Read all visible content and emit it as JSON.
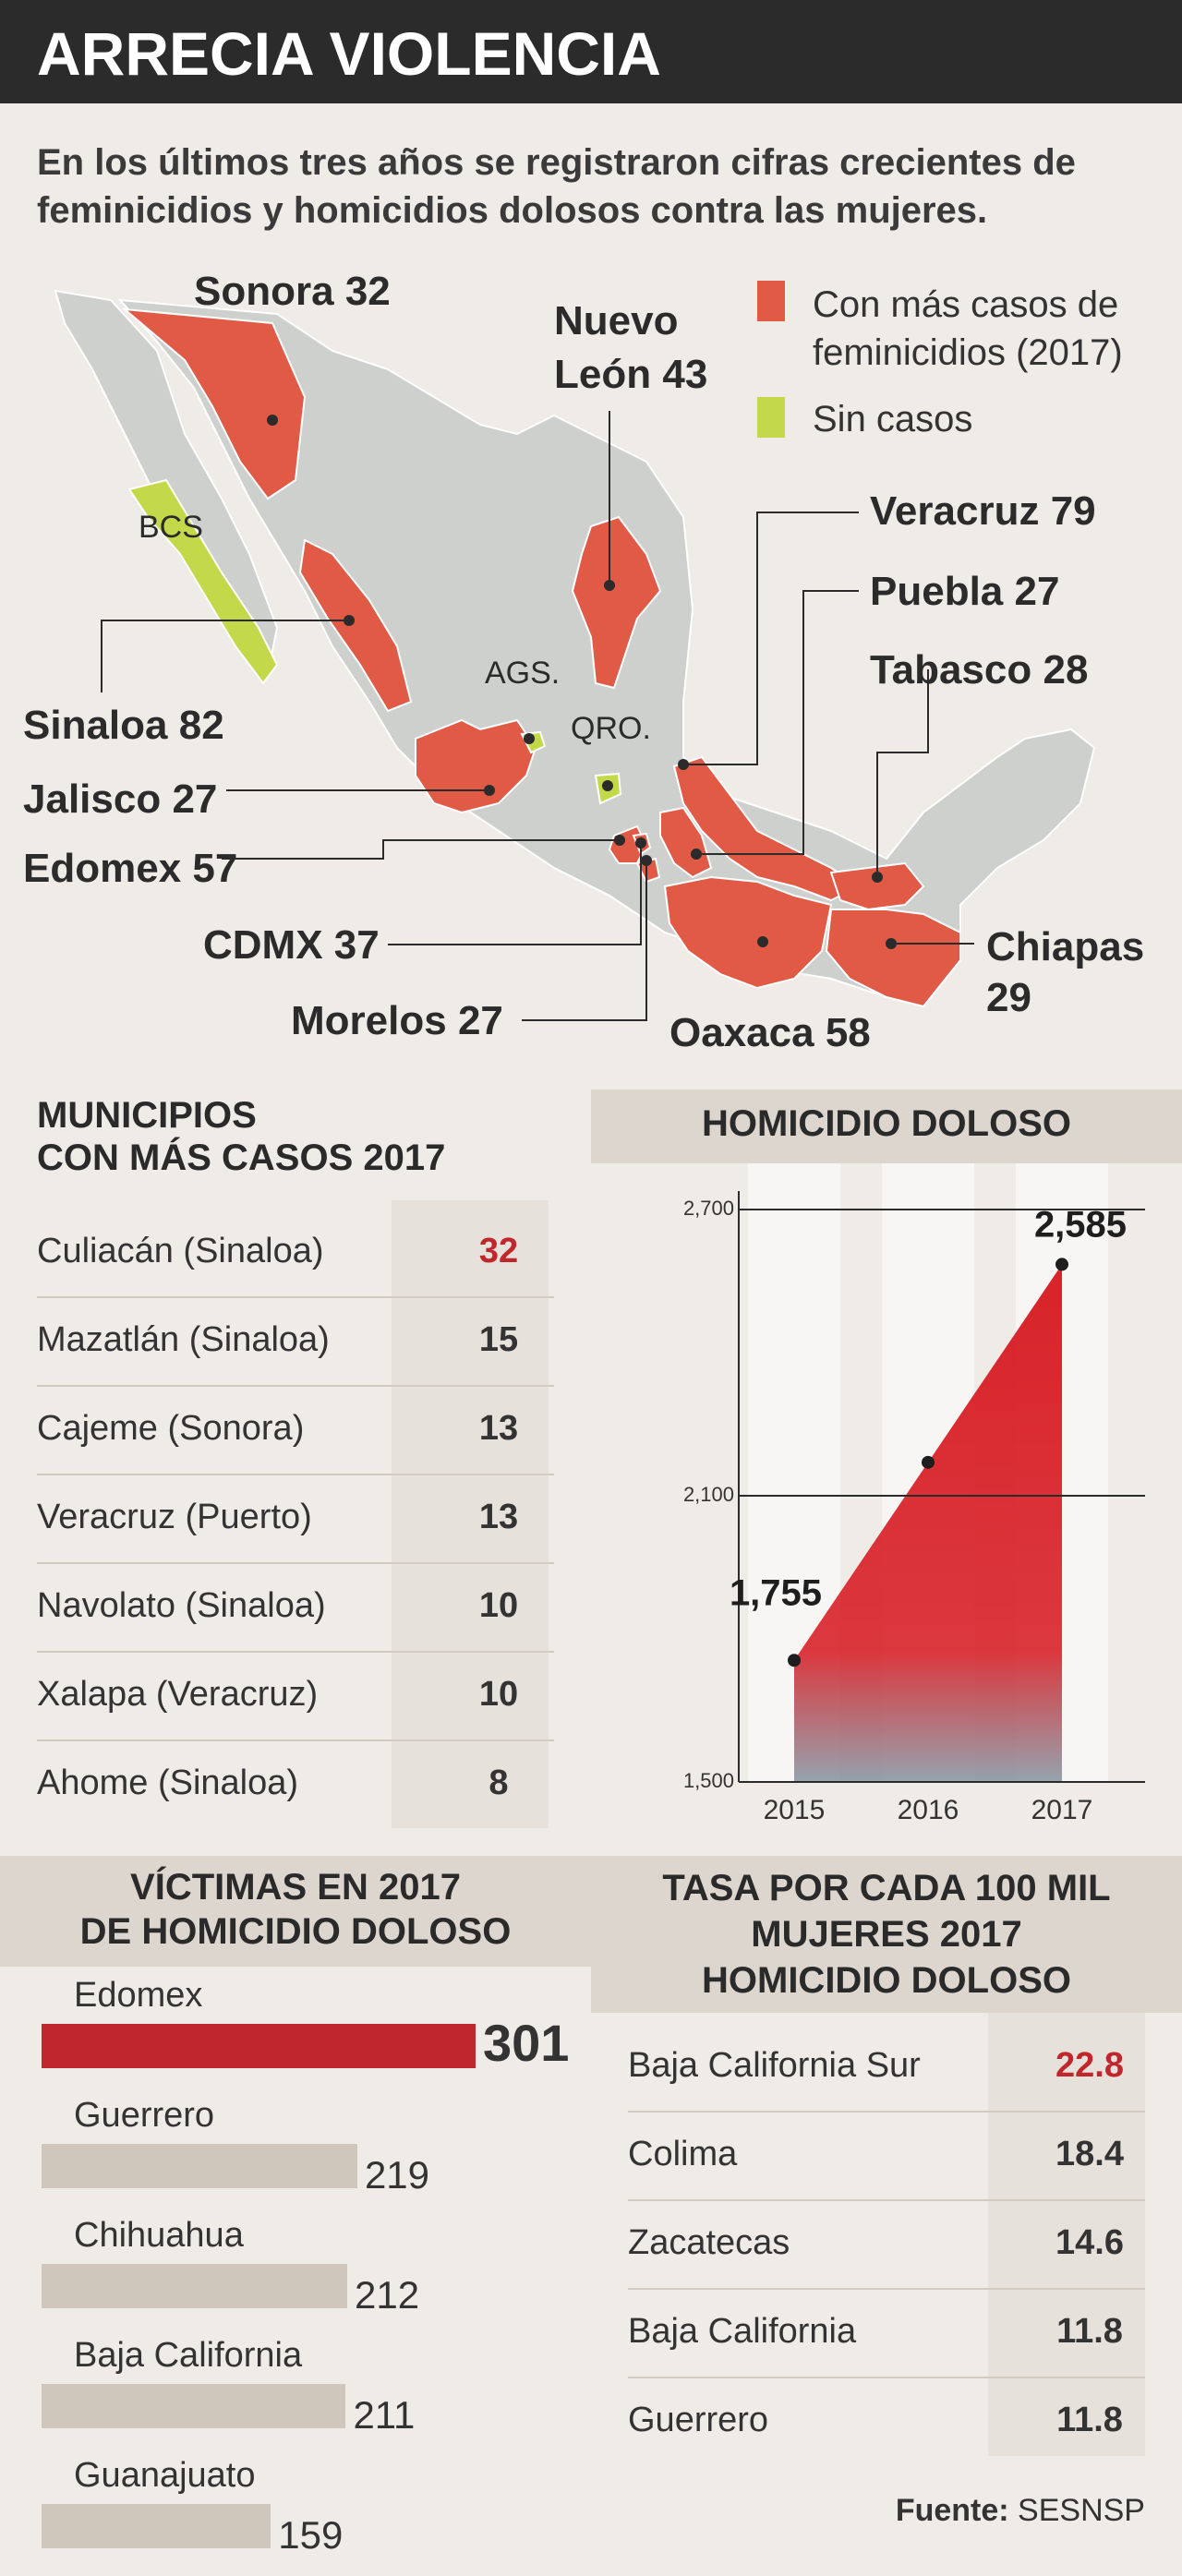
{
  "title": "ARRECIA VIOLENCIA",
  "intro": "En los últimos tres años se registraron cifras crecientes de feminicidios y homicidios dolosos contra las mujeres.",
  "map": {
    "legend": [
      {
        "label_line1": "Con más casos de",
        "label_line2": "feminicidios (2017)",
        "color": "#e05a45"
      },
      {
        "label_line1": "Sin casos",
        "label_line2": "",
        "color": "#c3d94a"
      }
    ],
    "states": [
      {
        "name": "Sonora",
        "value": "32"
      },
      {
        "name_line1": "Nuevo",
        "name_line2": "León",
        "value": "43"
      },
      {
        "name": "Veracruz",
        "value": "79"
      },
      {
        "name": "Puebla",
        "value": "27"
      },
      {
        "name": "Tabasco",
        "value": "28"
      },
      {
        "name": "Sinaloa",
        "value": "82"
      },
      {
        "name": "Jalisco",
        "value": "27"
      },
      {
        "name": "Edomex",
        "value": "57"
      },
      {
        "name": "CDMX",
        "value": "37"
      },
      {
        "name": "Morelos",
        "value": "27"
      },
      {
        "name": "Oaxaca",
        "value": "58"
      },
      {
        "name_line1": "Chiapas",
        "name_line2": "29"
      }
    ],
    "no_case_labels": [
      "BCS",
      "AGS.",
      "QRO."
    ]
  },
  "municipios": {
    "title_line1": "MUNICIPIOS",
    "title_line2": "CON MÁS CASOS 2017",
    "rows": [
      {
        "label": "Culiacán (Sinaloa)",
        "value": "32"
      },
      {
        "label": "Mazatlán (Sinaloa)",
        "value": "15"
      },
      {
        "label": "Cajeme (Sonora)",
        "value": "13"
      },
      {
        "label": "Veracruz (Puerto)",
        "value": "13"
      },
      {
        "label": "Navolato (Sinaloa)",
        "value": "10"
      },
      {
        "label": "Xalapa (Veracruz)",
        "value": "10"
      },
      {
        "label": "Ahome (Sinaloa)",
        "value": "8"
      }
    ],
    "highlight_color": "#c0272d"
  },
  "chart_data": [
    {
      "type": "area",
      "title": "HOMICIDIO DOLOSO",
      "categories": [
        "2015",
        "2016",
        "2017"
      ],
      "values": [
        1755,
        2170,
        2585
      ],
      "data_labels": [
        "1,755",
        "",
        "2,585"
      ],
      "yticks": [
        1500,
        2100,
        2700
      ],
      "ytick_labels": [
        "1,500",
        "2,100",
        "2,700"
      ],
      "ylim": [
        1500,
        2700
      ],
      "color": "#d8232a"
    },
    {
      "type": "bar",
      "title_line1": "VÍCTIMAS EN 2017",
      "title_line2": "DE HOMICIDIO DOLOSO",
      "categories": [
        "Edomex",
        "Guerrero",
        "Chihuahua",
        "Baja California",
        "Guanajuato"
      ],
      "values": [
        301,
        219,
        212,
        211,
        159
      ],
      "highlight_color": "#c0272d",
      "bar_color": "#cfc7bb"
    }
  ],
  "tasa": {
    "title_line1": "TASA POR CADA 100 MIL",
    "title_line2": "MUJERES 2017",
    "title_line3": "HOMICIDIO DOLOSO",
    "rows": [
      {
        "label": "Baja California Sur",
        "value": "22.8"
      },
      {
        "label": "Colima",
        "value": "18.4"
      },
      {
        "label": "Zacatecas",
        "value": "14.6"
      },
      {
        "label": "Baja California",
        "value": "11.8"
      },
      {
        "label": "Guerrero",
        "value": "11.8"
      }
    ]
  },
  "source": {
    "prefix": "Fuente:",
    "name": "SESNSP"
  }
}
